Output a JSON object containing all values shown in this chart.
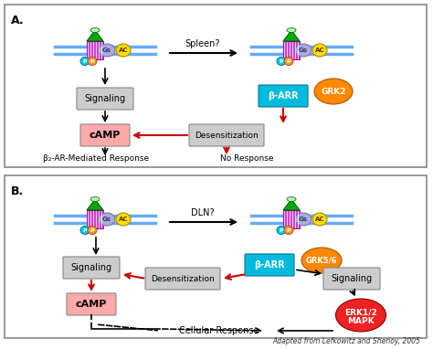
{
  "title_A": "A.",
  "title_B": "B.",
  "spleen_label": "Spleen?",
  "dln_label": "DLN?",
  "beta2_label": "β₂-AR-Mediated Response",
  "no_response_label": "No Response",
  "cellular_response_label": "Cellular Response",
  "adapted_label": "Adapted from Lefkowitz and Shenoy, 2005",
  "bg_color": "#ffffff",
  "panel_border_color": "#000000",
  "membrane_color": "#cc44cc",
  "receptor_color": "#cc44cc",
  "gs_color": "#aaaadd",
  "ac_color": "#ffdd00",
  "p_color_cyan": "#00ccee",
  "p_color_orange": "#ff9933",
  "grk2_color": "#ff8800",
  "grk56_color": "#ff8800",
  "barr_color": "#00bbdd",
  "signaling_box_color": "#cccccc",
  "desensitization_box_color": "#cccccc",
  "camp_color": "#ffaaaa",
  "erk_color": "#ee2222",
  "ligand_color": "#00aa00",
  "arrow_black": "#000000",
  "arrow_red": "#cc0000",
  "membrane_line_color": "#66aaff"
}
